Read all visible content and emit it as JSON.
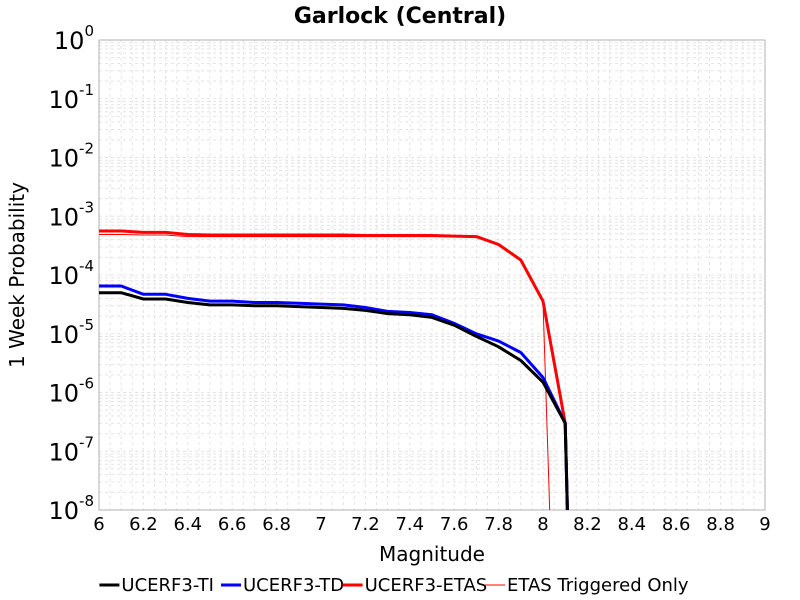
{
  "chart_data": {
    "type": "line",
    "title": "Garlock (Central)",
    "xlabel": "Magnitude",
    "ylabel": "1 Week Probability",
    "xlim": [
      6,
      9
    ],
    "ylim": [
      1e-08,
      1
    ],
    "yscale": "log",
    "grid": true,
    "legend_position": "bottom",
    "x_ticks": [
      "6",
      "6.2",
      "6.4",
      "6.6",
      "6.8",
      "7",
      "7.2",
      "7.4",
      "7.6",
      "7.8",
      "8",
      "8.2",
      "8.4",
      "8.6",
      "8.8",
      "9"
    ],
    "y_ticks": [
      {
        "base": "10",
        "exp": "0"
      },
      {
        "base": "10",
        "exp": "-1"
      },
      {
        "base": "10",
        "exp": "-2"
      },
      {
        "base": "10",
        "exp": "-3"
      },
      {
        "base": "10",
        "exp": "-4"
      },
      {
        "base": "10",
        "exp": "-5"
      },
      {
        "base": "10",
        "exp": "-6"
      },
      {
        "base": "10",
        "exp": "-7"
      },
      {
        "base": "10",
        "exp": "-8"
      }
    ],
    "series": [
      {
        "name": "UCERF3-TI",
        "color": "#000000",
        "width": 3,
        "x": [
          6.0,
          6.1,
          6.2,
          6.3,
          6.4,
          6.5,
          6.6,
          6.7,
          6.8,
          6.9,
          7.0,
          7.1,
          7.2,
          7.3,
          7.4,
          7.5,
          7.6,
          7.7,
          7.8,
          7.9,
          8.0,
          8.1,
          8.11
        ],
        "y": [
          5e-05,
          5e-05,
          3.9e-05,
          3.9e-05,
          3.4e-05,
          3.1e-05,
          3.1e-05,
          3e-05,
          3e-05,
          2.9e-05,
          2.8e-05,
          2.7e-05,
          2.5e-05,
          2.2e-05,
          2.1e-05,
          1.9e-05,
          1.4e-05,
          9e-06,
          6e-06,
          3.5e-06,
          1.5e-06,
          3e-07,
          1e-08
        ]
      },
      {
        "name": "UCERF3-TD",
        "color": "#0000ff",
        "width": 3,
        "x": [
          6.0,
          6.1,
          6.2,
          6.3,
          6.4,
          6.5,
          6.6,
          6.7,
          6.8,
          6.9,
          7.0,
          7.1,
          7.2,
          7.3,
          7.4,
          7.5,
          7.6,
          7.7,
          7.8,
          7.9,
          8.0,
          8.1,
          8.11
        ],
        "y": [
          6.5e-05,
          6.5e-05,
          4.7e-05,
          4.7e-05,
          4e-05,
          3.6e-05,
          3.6e-05,
          3.4e-05,
          3.4e-05,
          3.3e-05,
          3.2e-05,
          3.1e-05,
          2.8e-05,
          2.4e-05,
          2.3e-05,
          2.1e-05,
          1.5e-05,
          1e-05,
          7.5e-06,
          4.8e-06,
          1.8e-06,
          3e-07,
          1e-08
        ]
      },
      {
        "name": "UCERF3-ETAS",
        "color": "#ff0000",
        "width": 3,
        "x": [
          6.0,
          6.1,
          6.2,
          6.3,
          6.4,
          6.5,
          6.6,
          6.7,
          6.8,
          6.9,
          7.0,
          7.1,
          7.2,
          7.3,
          7.4,
          7.5,
          7.6,
          7.7,
          7.8,
          7.9,
          8.0,
          8.1,
          8.11
        ],
        "y": [
          0.00056,
          0.00056,
          0.00053,
          0.00053,
          0.00049,
          0.00048,
          0.00048,
          0.00048,
          0.00048,
          0.00048,
          0.00048,
          0.00048,
          0.00047,
          0.00047,
          0.00047,
          0.00047,
          0.00046,
          0.00045,
          0.00033,
          0.00018,
          3.6e-05,
          3e-07,
          1e-08
        ]
      },
      {
        "name": "ETAS Triggered Only",
        "color": "#ff0000",
        "width": 1,
        "x": [
          6.0,
          6.1,
          6.2,
          6.3,
          6.4,
          6.5,
          6.6,
          6.7,
          6.8,
          6.9,
          7.0,
          7.1,
          7.2,
          7.3,
          7.4,
          7.5,
          7.6,
          7.7,
          7.8,
          7.9,
          8.0,
          8.03
        ],
        "y": [
          0.00049,
          0.00049,
          0.00048,
          0.00048,
          0.00045,
          0.00045,
          0.00045,
          0.00045,
          0.00045,
          0.00045,
          0.00045,
          0.00045,
          0.00045,
          0.00045,
          0.00045,
          0.00045,
          0.00045,
          0.00044,
          0.00032,
          0.00018,
          3.5e-05,
          1e-08
        ]
      }
    ]
  }
}
